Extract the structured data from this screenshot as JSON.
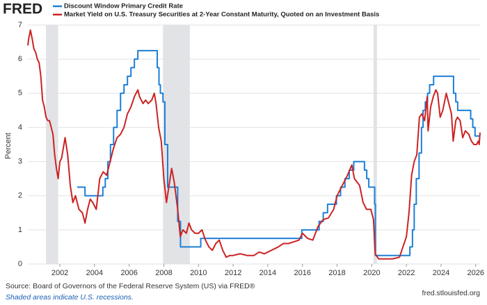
{
  "chart_data": {
    "type": "line",
    "logo": "FRED",
    "ylabel": "Percent",
    "source": "Source: Board of Governors of the Federal Reserve System (US) via FRED®",
    "note": "Shaded areas indicate U.S. recessions.",
    "site": "fred.stlouisfed.org",
    "xlim": [
      2000.15,
      2026.25
    ],
    "xticks": [
      2002,
      2004,
      2006,
      2008,
      2010,
      2012,
      2014,
      2016,
      2018,
      2020,
      2022,
      2024,
      2026
    ],
    "ylim": [
      0,
      7
    ],
    "yticks": [
      0,
      1,
      2,
      3,
      4,
      5,
      6,
      7
    ],
    "grid": true,
    "recession_color": "#e1e3e6",
    "recessions": [
      [
        2001.2,
        2001.9
      ],
      [
        2007.95,
        2009.5
      ],
      [
        2020.1,
        2020.3
      ]
    ],
    "series": [
      {
        "name": "Discount Window Primary Credit Rate",
        "color": "#1b7fd6",
        "x": [
          2003.0,
          2003.45,
          2003.45,
          2004.48,
          2004.48,
          2004.62,
          2004.62,
          2004.77,
          2004.77,
          2004.92,
          2004.92,
          2005.1,
          2005.1,
          2005.3,
          2005.3,
          2005.5,
          2005.5,
          2005.7,
          2005.7,
          2005.9,
          2005.9,
          2006.1,
          2006.1,
          2006.3,
          2006.3,
          2006.5,
          2006.5,
          2007.62,
          2007.62,
          2007.72,
          2007.72,
          2007.8,
          2007.8,
          2007.95,
          2007.95,
          2008.06,
          2008.06,
          2008.22,
          2008.22,
          2008.8,
          2008.8,
          2008.96,
          2008.96,
          2010.13,
          2010.13,
          2015.96,
          2015.96,
          2016.96,
          2016.96,
          2017.2,
          2017.2,
          2017.45,
          2017.45,
          2017.96,
          2017.96,
          2018.2,
          2018.2,
          2018.45,
          2018.45,
          2018.7,
          2018.7,
          2018.96,
          2018.96,
          2019.58,
          2019.58,
          2019.71,
          2019.71,
          2019.83,
          2019.83,
          2020.17,
          2020.17,
          2020.21,
          2020.21,
          2022.2,
          2022.2,
          2022.35,
          2022.35,
          2022.45,
          2022.45,
          2022.57,
          2022.57,
          2022.73,
          2022.73,
          2022.87,
          2022.87,
          2022.96,
          2022.96,
          2023.09,
          2023.09,
          2023.22,
          2023.22,
          2023.34,
          2023.34,
          2023.57,
          2023.57,
          2024.72,
          2024.72,
          2024.85,
          2024.85,
          2024.96,
          2024.96,
          2025.71,
          2025.71,
          2025.83,
          2025.83,
          2025.96,
          2025.96,
          2026.22
        ],
        "values": [
          2.25,
          2.25,
          2.0,
          2.0,
          2.25,
          2.25,
          2.5,
          2.5,
          3.0,
          3.0,
          3.5,
          3.5,
          4.0,
          4.0,
          4.5,
          4.5,
          5.0,
          5.0,
          5.25,
          5.25,
          5.5,
          5.5,
          5.75,
          5.75,
          6.0,
          6.0,
          6.25,
          6.25,
          5.75,
          5.75,
          5.25,
          5.25,
          5.0,
          5.0,
          4.75,
          4.75,
          3.5,
          3.5,
          2.25,
          2.25,
          1.25,
          1.25,
          0.5,
          0.5,
          0.75,
          0.75,
          1.0,
          1.0,
          1.25,
          1.25,
          1.5,
          1.5,
          1.75,
          1.75,
          2.0,
          2.0,
          2.25,
          2.25,
          2.5,
          2.5,
          2.75,
          2.75,
          3.0,
          3.0,
          2.75,
          2.75,
          2.5,
          2.5,
          2.25,
          2.25,
          1.75,
          1.75,
          0.25,
          0.25,
          0.5,
          0.5,
          1.0,
          1.0,
          1.75,
          1.75,
          2.5,
          2.5,
          3.25,
          3.25,
          4.0,
          4.0,
          4.5,
          4.5,
          4.75,
          4.75,
          5.0,
          5.0,
          5.25,
          5.25,
          5.5,
          5.5,
          5.0,
          5.0,
          4.75,
          4.75,
          4.5,
          4.5,
          4.25,
          4.25,
          4.0,
          4.0,
          3.75,
          3.75
        ]
      },
      {
        "name": "Market Yield on U.S. Treasury Securities at 2-Year Constant Maturity, Quoted on an Investment Basis",
        "color": "#cc2222",
        "x": [
          2000.15,
          2000.2,
          2000.3,
          2000.4,
          2000.5,
          2000.6,
          2000.7,
          2000.8,
          2000.9,
          2001.0,
          2001.1,
          2001.2,
          2001.3,
          2001.4,
          2001.5,
          2001.6,
          2001.7,
          2001.8,
          2001.9,
          2002.0,
          2002.1,
          2002.3,
          2002.45,
          2002.6,
          2002.75,
          2002.9,
          2003.1,
          2003.3,
          2003.45,
          2003.6,
          2003.75,
          2003.9,
          2004.1,
          2004.3,
          2004.5,
          2004.7,
          2004.9,
          2005.1,
          2005.3,
          2005.5,
          2005.7,
          2005.9,
          2006.1,
          2006.3,
          2006.5,
          2006.6,
          2006.8,
          2006.95,
          2007.1,
          2007.3,
          2007.45,
          2007.55,
          2007.7,
          2007.85,
          2008.0,
          2008.15,
          2008.3,
          2008.45,
          2008.6,
          2008.8,
          2008.95,
          2009.1,
          2009.3,
          2009.45,
          2009.6,
          2009.8,
          2010.0,
          2010.2,
          2010.4,
          2010.6,
          2010.8,
          2011.0,
          2011.2,
          2011.4,
          2011.6,
          2011.8,
          2012.0,
          2012.4,
          2012.8,
          2013.2,
          2013.5,
          2013.8,
          2014.2,
          2014.6,
          2014.9,
          2015.2,
          2015.5,
          2015.8,
          2016.0,
          2016.3,
          2016.6,
          2016.9,
          2017.2,
          2017.5,
          2017.8,
          2018.0,
          2018.3,
          2018.6,
          2018.85,
          2019.0,
          2019.3,
          2019.5,
          2019.7,
          2019.95,
          2020.1,
          2020.2,
          2020.4,
          2020.8,
          2021.2,
          2021.6,
          2021.8,
          2022.0,
          2022.15,
          2022.3,
          2022.45,
          2022.6,
          2022.75,
          2022.9,
          2023.05,
          2023.2,
          2023.25,
          2023.4,
          2023.55,
          2023.7,
          2023.8,
          2023.95,
          2024.1,
          2024.3,
          2024.45,
          2024.6,
          2024.7,
          2024.85,
          2024.95,
          2025.1,
          2025.25,
          2025.4,
          2025.6,
          2025.75,
          2025.9,
          2026.05,
          2026.15,
          2026.2,
          2026.25
        ],
        "values": [
          6.4,
          6.6,
          6.85,
          6.6,
          6.3,
          6.2,
          6.0,
          5.9,
          5.5,
          4.8,
          4.6,
          4.3,
          4.2,
          4.2,
          4.0,
          3.8,
          3.2,
          2.8,
          2.5,
          3.0,
          3.1,
          3.7,
          3.2,
          2.3,
          1.8,
          2.0,
          1.6,
          1.5,
          1.2,
          1.6,
          1.9,
          1.8,
          1.6,
          2.5,
          2.7,
          2.6,
          3.0,
          3.4,
          3.7,
          3.8,
          4.0,
          4.4,
          4.6,
          4.9,
          5.1,
          4.9,
          4.7,
          4.8,
          4.7,
          4.8,
          5.0,
          4.7,
          4.0,
          3.6,
          2.5,
          1.8,
          2.3,
          2.8,
          2.4,
          1.6,
          0.8,
          1.0,
          0.9,
          1.2,
          1.0,
          0.9,
          0.9,
          1.0,
          0.7,
          0.5,
          0.4,
          0.6,
          0.7,
          0.4,
          0.2,
          0.25,
          0.25,
          0.3,
          0.25,
          0.25,
          0.35,
          0.3,
          0.4,
          0.5,
          0.6,
          0.6,
          0.65,
          0.7,
          0.9,
          0.75,
          0.7,
          1.1,
          1.3,
          1.35,
          1.6,
          2.0,
          2.3,
          2.6,
          2.9,
          2.5,
          2.3,
          1.8,
          1.6,
          1.6,
          1.3,
          0.3,
          0.15,
          0.15,
          0.15,
          0.2,
          0.5,
          0.8,
          1.5,
          2.6,
          3.0,
          3.2,
          4.3,
          4.4,
          4.2,
          4.9,
          3.9,
          4.6,
          4.9,
          5.1,
          5.0,
          4.3,
          4.5,
          5.0,
          4.7,
          4.4,
          3.6,
          4.2,
          4.3,
          4.2,
          3.7,
          3.9,
          3.8,
          3.6,
          3.5,
          3.5,
          3.6,
          3.5,
          3.85
        ]
      }
    ]
  }
}
